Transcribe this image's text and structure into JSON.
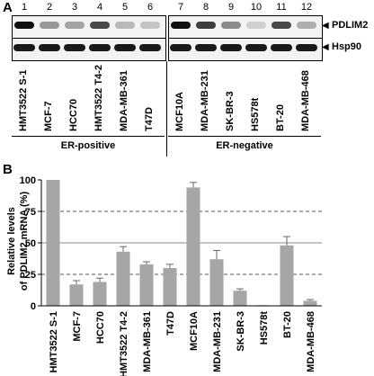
{
  "panel_a": {
    "letter": "A",
    "lane_numbers": [
      "1",
      "2",
      "3",
      "4",
      "5",
      "6",
      "7",
      "8",
      "9",
      "10",
      "11",
      "12"
    ],
    "band_labels": {
      "top": "PDLIM2",
      "bottom": "Hsp90"
    },
    "cell_lines": [
      "HMT3522 S-1",
      "MCF-7",
      "HCC70",
      "HMT3522 T4-2",
      "MDA-MB-361",
      "T47D",
      "MCF10A",
      "MDA-MB-231",
      "SK-BR-3",
      "HS578t",
      "BT-20",
      "MDA-MB-468"
    ],
    "groups": {
      "left": "ER-positive",
      "right": "ER-negative"
    },
    "pdlim2_band_intensity": [
      0.95,
      0.35,
      0.3,
      0.7,
      0.2,
      0.15,
      0.95,
      0.75,
      0.4,
      0.1,
      0.7,
      0.25
    ]
  },
  "panel_b": {
    "letter": "B"
  },
  "chart_data": {
    "type": "bar",
    "categories": [
      "HMT3522 S-1",
      "MCF-7",
      "HCC70",
      "HMT3522 T4-2",
      "MDA-MB-361",
      "T47D",
      "MCF10A",
      "MDA-MB-231",
      "SK-BR-3",
      "HS578t",
      "BT-20",
      "MDA-MB-468"
    ],
    "values": [
      100,
      17,
      19,
      43,
      33,
      30,
      94,
      37,
      12,
      0.5,
      48,
      4
    ],
    "errors": [
      0,
      3,
      3,
      4,
      2,
      3,
      4,
      7,
      1.5,
      0,
      7,
      1
    ],
    "ylabel_line1": "Relative levels",
    "ylabel_line2": "of PDLIM2 mRNA (%)",
    "ylim": [
      0,
      100
    ],
    "yticks": [
      "0",
      "25",
      "50",
      "75",
      "100"
    ],
    "bar_color": "#a6a6a6",
    "grid": "dashed lines at 25 and 75, solid line at 50"
  }
}
